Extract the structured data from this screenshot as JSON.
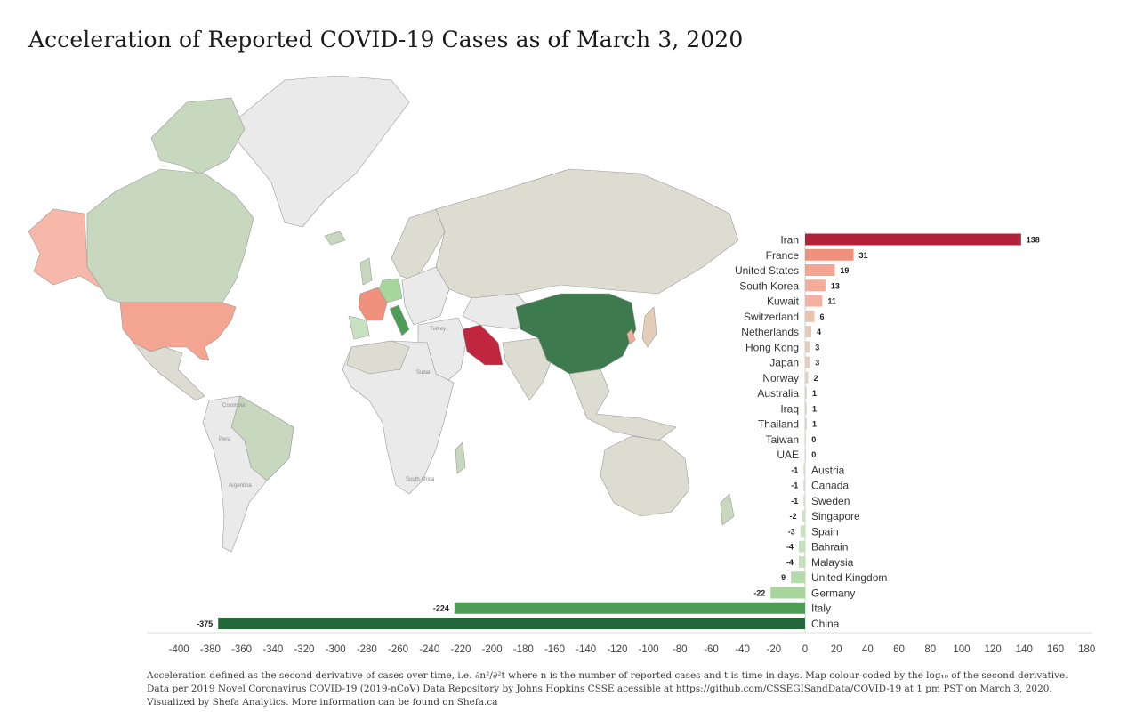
{
  "title": "Acceleration of Reported COVID-19 Cases as of March 3, 2020",
  "footnotes": {
    "line1": "Acceleration defined as the second derivative of cases over time, i.e. ∂n²/∂²t where n is the number of reported cases and t is time in days. Map colour-coded by the log₁₀ of the second derivative.",
    "line2": "Data per 2019 Novel Coronavirus COVID-19 (2019-nCoV) Data Repository by Johns Hopkins CSSE acessible at https://github.com/CSSEGISandData/COVID-19 at 1 pm PST on March 3, 2020.",
    "line3": "Visualized by Shefa Analytics. More information can be found on Shefa.ca"
  },
  "map": {
    "labels": {
      "turkey": "Turkey",
      "colombia": "Colombia",
      "peru": "Peru",
      "argentina": "Argentina",
      "south_africa": "South Africa",
      "sudan": "Sudan"
    },
    "colors": {
      "high": "#c0273e",
      "mid": "#f19a86",
      "low": "#f7b8aa",
      "neutral": "#dcdcd0",
      "no_data": "#eaeaea",
      "negative_light": "#c7d8be",
      "negative_mid": "#a6d19a",
      "negative_strong": "#3d7a4e"
    }
  },
  "chart_data": {
    "type": "bar",
    "orientation": "horizontal",
    "categories": [
      "Iran",
      "France",
      "United States",
      "South Korea",
      "Kuwait",
      "Switzerland",
      "Netherlands",
      "Hong Kong",
      "Japan",
      "Norway",
      "Australia",
      "Iraq",
      "Thailand",
      "Taiwan",
      "UAE",
      "Austria",
      "Canada",
      "Sweden",
      "Singapore",
      "Spain",
      "Bahrain",
      "Malaysia",
      "United Kingdom",
      "Germany",
      "Italy",
      "China"
    ],
    "values": [
      138,
      31,
      19,
      13,
      11,
      6,
      4,
      3,
      3,
      2,
      1,
      1,
      1,
      0,
      0,
      -1,
      -1,
      -1,
      -2,
      -3,
      -4,
      -4,
      -9,
      -22,
      -224,
      -375
    ],
    "colors": [
      "#b4213b",
      "#f0917d",
      "#f4a592",
      "#f5ad9b",
      "#f5b1a0",
      "#ecc2b1",
      "#e6cab7",
      "#e4cdb9",
      "#e4cdb9",
      "#e1d1bf",
      "#dcd7c7",
      "#dcd7c7",
      "#dcd7c7",
      "#d9dccd",
      "#d9dccd",
      "#d2e1cb",
      "#d2e1cb",
      "#d2e1cb",
      "#cde2c5",
      "#c8e1c0",
      "#c4e0bc",
      "#c4e0bc",
      "#b5dbac",
      "#a6d69c",
      "#4e9d55",
      "#23673a"
    ],
    "xlim": [
      -400,
      180
    ],
    "xticks": [
      -400,
      -380,
      -360,
      -340,
      -320,
      -300,
      -280,
      -260,
      -240,
      -220,
      -200,
      -180,
      -160,
      -140,
      -120,
      -100,
      -80,
      -60,
      -40,
      -20,
      0,
      20,
      40,
      60,
      80,
      100,
      120,
      140,
      160,
      180
    ],
    "xlabel": "",
    "ylabel": "",
    "grid": false,
    "legend": "none"
  }
}
